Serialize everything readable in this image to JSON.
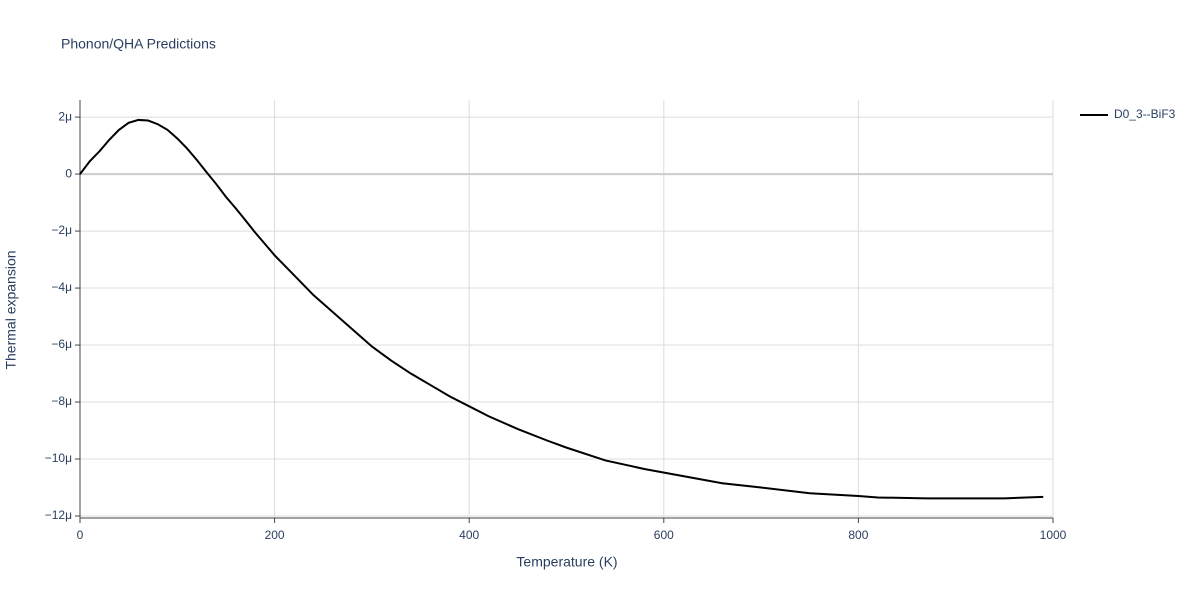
{
  "chart_data": {
    "type": "line",
    "title": "Phonon/QHA Predictions",
    "x_label": "Temperature (K)",
    "y_label": "Thermal expansion",
    "x": [
      0,
      10,
      20,
      30,
      40,
      50,
      60,
      70,
      80,
      90,
      100,
      110,
      120,
      130,
      140,
      150,
      160,
      170,
      180,
      190,
      200,
      220,
      240,
      260,
      280,
      300,
      320,
      340,
      360,
      380,
      400,
      420,
      450,
      480,
      500,
      540,
      580,
      620,
      660,
      700,
      750,
      800,
      820,
      870,
      950,
      990
    ],
    "series": [
      {
        "name": "D0_3--BiF3",
        "color": "#000000",
        "values": [
          0,
          4.5e-07,
          8e-07,
          1.2e-06,
          1.55e-06,
          1.8e-06,
          1.9e-06,
          1.88e-06,
          1.75e-06,
          1.55e-06,
          1.25e-06,
          9e-07,
          5e-07,
          7e-08,
          -3.5e-07,
          -8e-07,
          -1.2e-06,
          -1.62e-06,
          -2.05e-06,
          -2.45e-06,
          -2.85e-06,
          -3.55e-06,
          -4.25e-06,
          -4.85e-06,
          -5.45e-06,
          -6.05e-06,
          -6.55e-06,
          -7e-06,
          -7.4e-06,
          -7.8e-06,
          -8.15e-06,
          -8.5e-06,
          -8.95e-06,
          -9.35e-06,
          -9.6e-06,
          -1.005e-05,
          -1.035e-05,
          -1.06e-05,
          -1.085e-05,
          -1.1e-05,
          -1.12e-05,
          -1.13e-05,
          -1.135e-05,
          -1.138e-05,
          -1.138e-05,
          -1.133e-05
        ]
      }
    ],
    "xlim": [
      0,
      1000
    ],
    "xticks": [
      0,
      200,
      400,
      600,
      800,
      1000
    ],
    "ylim": [
      -1.207e-05,
      2.6e-06
    ],
    "yticks": [
      {
        "value": -1.2e-05,
        "label": "−12μ"
      },
      {
        "value": -1e-05,
        "label": "−10μ"
      },
      {
        "value": -8e-06,
        "label": "−8μ"
      },
      {
        "value": -6e-06,
        "label": "−6μ"
      },
      {
        "value": -4e-06,
        "label": "−4μ"
      },
      {
        "value": -2e-06,
        "label": "−2μ"
      },
      {
        "value": 0,
        "label": "0"
      },
      {
        "value": 2e-06,
        "label": "2μ"
      }
    ],
    "grid": true,
    "legend": "right"
  }
}
